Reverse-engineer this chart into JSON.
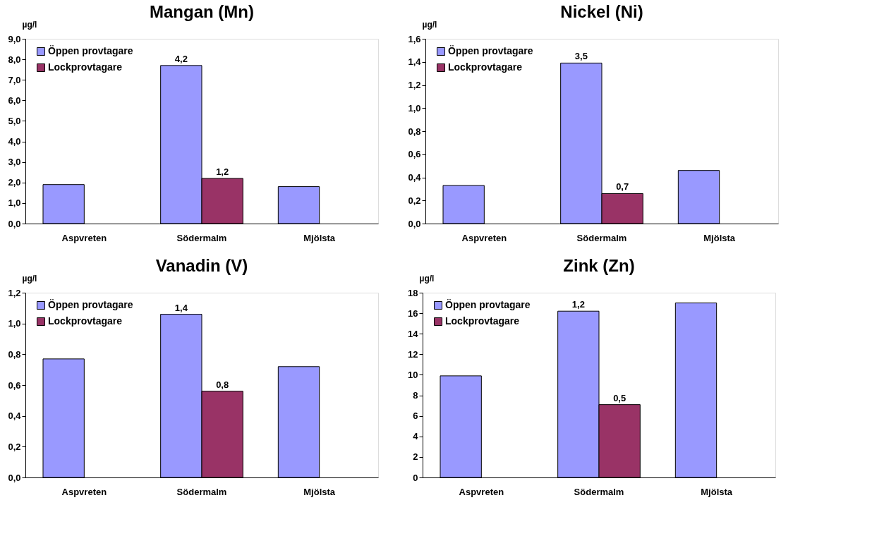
{
  "chart_data": [
    {
      "type": "bar",
      "title": "Mangan (Mn)",
      "ylabel": "µg/l",
      "categories": [
        "Aspvreten",
        "Södermalm",
        "Mjölsta"
      ],
      "series": [
        {
          "name": "Öppen provtagare",
          "color": "#9999ff",
          "values": [
            1.9,
            7.7,
            1.8
          ]
        },
        {
          "name": "Lockprovtagare",
          "color": "#993366",
          "values": [
            null,
            2.2,
            null
          ]
        }
      ],
      "ylim": [
        0,
        9
      ],
      "yticks": [
        {
          "value": 0,
          "label": "0,0"
        },
        {
          "value": 1,
          "label": "1,0"
        },
        {
          "value": 2,
          "label": "2,0"
        },
        {
          "value": 3,
          "label": "3,0"
        },
        {
          "value": 4,
          "label": "4,0"
        },
        {
          "value": 5,
          "label": "5,0"
        },
        {
          "value": 6,
          "label": "6,0"
        },
        {
          "value": 7,
          "label": "7,0"
        },
        {
          "value": 8,
          "label": "8,0"
        },
        {
          "value": 9,
          "label": "9,0"
        }
      ],
      "annotations": [
        {
          "text": "4,2",
          "x": "Södermalm",
          "y": 7.7
        },
        {
          "text": "1,2",
          "x": "Södermalm",
          "y": 2.2
        }
      ],
      "legend": "top left",
      "grid": false
    },
    {
      "type": "bar",
      "title": "Nickel (Ni)",
      "ylabel": "µg/l",
      "categories": [
        "Aspvreten",
        "Södermalm",
        "Mjölsta"
      ],
      "series": [
        {
          "name": "Öppen provtagare",
          "color": "#9999ff",
          "values": [
            0.33,
            1.39,
            0.46
          ]
        },
        {
          "name": "Lockprovtagare",
          "color": "#993366",
          "values": [
            null,
            0.26,
            null
          ]
        }
      ],
      "ylim": [
        0,
        1.6
      ],
      "yticks": [
        {
          "value": 0,
          "label": "0,0"
        },
        {
          "value": 0.2,
          "label": "0,2"
        },
        {
          "value": 0.4,
          "label": "0,4"
        },
        {
          "value": 0.6,
          "label": "0,6"
        },
        {
          "value": 0.8,
          "label": "0,8"
        },
        {
          "value": 1.0,
          "label": "1,0"
        },
        {
          "value": 1.2,
          "label": "1,2"
        },
        {
          "value": 1.4,
          "label": "1,4"
        },
        {
          "value": 1.6,
          "label": "1,6"
        }
      ],
      "annotations": [
        {
          "text": "3,5",
          "x": "Södermalm",
          "y": 1.39
        },
        {
          "text": "0,7",
          "x": "Södermalm",
          "y": 0.26
        }
      ],
      "legend": "top left",
      "grid": false
    },
    {
      "type": "bar",
      "title": "Vanadin (V)",
      "ylabel": "µg/l",
      "categories": [
        "Aspvreten",
        "Södermalm",
        "Mjölsta"
      ],
      "series": [
        {
          "name": "Öppen provtagare",
          "color": "#9999ff",
          "values": [
            0.77,
            1.06,
            0.72
          ]
        },
        {
          "name": "Lockprovtagare",
          "color": "#993366",
          "values": [
            null,
            0.56,
            null
          ]
        }
      ],
      "ylim": [
        0,
        1.2
      ],
      "yticks": [
        {
          "value": 0,
          "label": "0,0"
        },
        {
          "value": 0.2,
          "label": "0,2"
        },
        {
          "value": 0.4,
          "label": "0,4"
        },
        {
          "value": 0.6,
          "label": "0,6"
        },
        {
          "value": 0.8,
          "label": "0,8"
        },
        {
          "value": 1.0,
          "label": "1,0"
        },
        {
          "value": 1.2,
          "label": "1,2"
        }
      ],
      "annotations": [
        {
          "text": "1,4",
          "x": "Södermalm",
          "y": 1.06
        },
        {
          "text": "0,8",
          "x": "Södermalm",
          "y": 0.56
        }
      ],
      "legend": "top left",
      "grid": false
    },
    {
      "type": "bar",
      "title": "Zink (Zn)",
      "ylabel": "µg/l",
      "categories": [
        "Aspvreten",
        "Södermalm",
        "Mjölsta"
      ],
      "series": [
        {
          "name": "Öppen provtagare",
          "color": "#9999ff",
          "values": [
            9.9,
            16.2,
            17.0
          ]
        },
        {
          "name": "Lockprovtagare",
          "color": "#993366",
          "values": [
            null,
            7.1,
            null
          ]
        }
      ],
      "ylim": [
        0,
        18
      ],
      "yticks": [
        0,
        2,
        4,
        6,
        8,
        10,
        12,
        14,
        16,
        18
      ],
      "annotations": [
        {
          "text": "1,2",
          "x": "Södermalm",
          "y": 16.2
        },
        {
          "text": "0,5",
          "x": "Södermalm",
          "y": 7.1
        }
      ],
      "legend": "top left",
      "grid": false
    }
  ]
}
